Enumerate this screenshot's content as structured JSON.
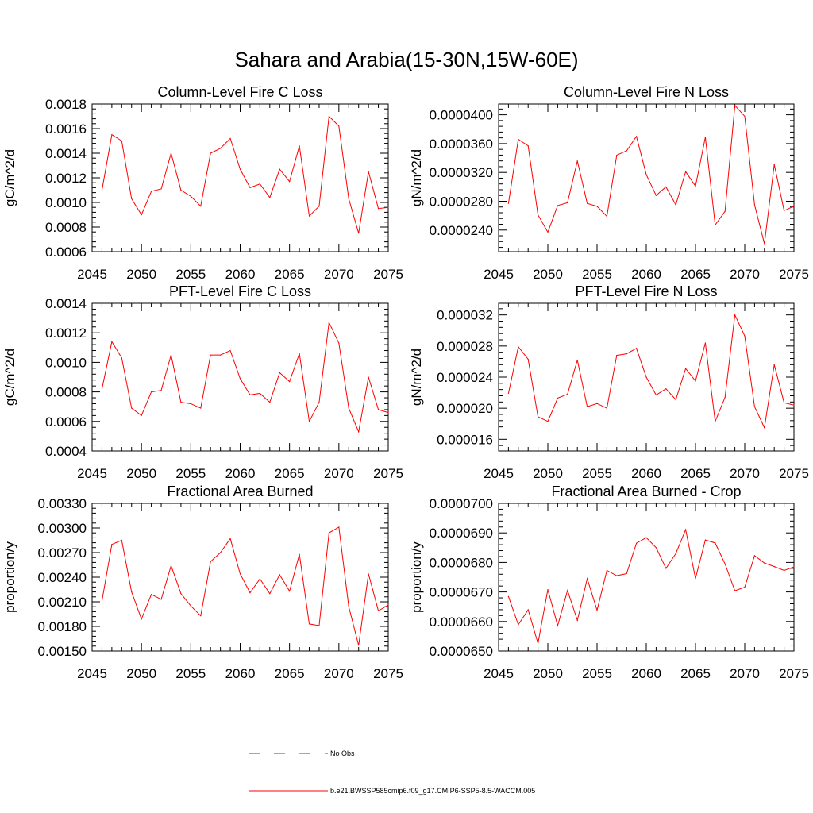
{
  "figure": {
    "title": "Sahara and Arabia(15-30N,15W-60E)"
  },
  "legend": {
    "entries": [
      {
        "label": "No Obs",
        "color": "#3b3bd6",
        "dashed": true
      },
      {
        "label": "b.e21.BWSSP585cmip6.f09_g17.CMIP6-SSP5-8.5-WACCM.005",
        "color": "#ff0000",
        "dashed": false
      }
    ]
  },
  "chart_data": [
    {
      "type": "line",
      "title": "Column-Level Fire C Loss",
      "ylabel": "gC/m^2/d",
      "xlabel": "",
      "xlim": [
        2045,
        2075
      ],
      "ylim": [
        0.0006,
        0.0018
      ],
      "xticks": [
        2045,
        2050,
        2055,
        2060,
        2065,
        2070,
        2075
      ],
      "yticks": [
        0.0006,
        0.0008,
        0.001,
        0.0012,
        0.0014,
        0.0016,
        0.0018
      ],
      "ytick_labels": [
        "0.0006",
        "0.0008",
        "0.0010",
        "0.0012",
        "0.0014",
        "0.0016",
        "0.0018"
      ],
      "x": [
        2046,
        2047,
        2048,
        2049,
        2050,
        2051,
        2052,
        2053,
        2054,
        2055,
        2056,
        2057,
        2058,
        2059,
        2060,
        2061,
        2062,
        2063,
        2064,
        2065,
        2066,
        2067,
        2068,
        2069,
        2070,
        2071,
        2072,
        2073,
        2074,
        2075
      ],
      "series": [
        {
          "color": "#ff0000",
          "values": [
            0.0011,
            0.00155,
            0.0015,
            0.00103,
            0.0009,
            0.00109,
            0.00111,
            0.0014,
            0.0011,
            0.00105,
            0.00097,
            0.0014,
            0.00144,
            0.00152,
            0.00127,
            0.00112,
            0.00115,
            0.00104,
            0.00127,
            0.00117,
            0.00146,
            0.00089,
            0.00097,
            0.0017,
            0.00162,
            0.00103,
            0.00075,
            0.00125,
            0.00095,
            0.00096
          ]
        }
      ]
    },
    {
      "type": "line",
      "title": "Column-Level Fire N Loss",
      "ylabel": "gN/m^2/d",
      "xlabel": "",
      "xlim": [
        2045,
        2075
      ],
      "ylim": [
        2.1e-05,
        4.15e-05
      ],
      "xticks": [
        2045,
        2050,
        2055,
        2060,
        2065,
        2070,
        2075
      ],
      "yticks": [
        2.4e-05,
        2.8e-05,
        3.2e-05,
        3.6e-05,
        4e-05
      ],
      "ytick_labels": [
        "0.0000240",
        "0.0000280",
        "0.0000320",
        "0.0000360",
        "0.0000400"
      ],
      "x": [
        2046,
        2047,
        2048,
        2049,
        2050,
        2051,
        2052,
        2053,
        2054,
        2055,
        2056,
        2057,
        2058,
        2059,
        2060,
        2061,
        2062,
        2063,
        2064,
        2065,
        2066,
        2067,
        2068,
        2069,
        2070,
        2071,
        2072,
        2073,
        2074,
        2075
      ],
      "series": [
        {
          "color": "#ff0000",
          "values": [
            2.77e-05,
            3.66e-05,
            3.57e-05,
            2.61e-05,
            2.37e-05,
            2.74e-05,
            2.78e-05,
            3.36e-05,
            2.77e-05,
            2.73e-05,
            2.59e-05,
            3.44e-05,
            3.5e-05,
            3.7e-05,
            3.17e-05,
            2.88e-05,
            3e-05,
            2.75e-05,
            3.21e-05,
            3.01e-05,
            3.69e-05,
            2.47e-05,
            2.66e-05,
            4.13e-05,
            3.98e-05,
            2.75e-05,
            2.21e-05,
            3.31e-05,
            2.67e-05,
            2.73e-05
          ]
        }
      ]
    },
    {
      "type": "line",
      "title": "PFT-Level Fire C Loss",
      "ylabel": "gC/m^2/d",
      "xlabel": "",
      "xlim": [
        2045,
        2075
      ],
      "ylim": [
        0.0004,
        0.0014
      ],
      "xticks": [
        2045,
        2050,
        2055,
        2060,
        2065,
        2070,
        2075
      ],
      "yticks": [
        0.0004,
        0.0006,
        0.0008,
        0.001,
        0.0012,
        0.0014
      ],
      "ytick_labels": [
        "0.0004",
        "0.0006",
        "0.0008",
        "0.0010",
        "0.0012",
        "0.0014"
      ],
      "x": [
        2046,
        2047,
        2048,
        2049,
        2050,
        2051,
        2052,
        2053,
        2054,
        2055,
        2056,
        2057,
        2058,
        2059,
        2060,
        2061,
        2062,
        2063,
        2064,
        2065,
        2066,
        2067,
        2068,
        2069,
        2070,
        2071,
        2072,
        2073,
        2074,
        2075
      ],
      "series": [
        {
          "color": "#ff0000",
          "values": [
            0.00082,
            0.00114,
            0.00103,
            0.00069,
            0.00064,
            0.0008,
            0.00081,
            0.00105,
            0.00073,
            0.00072,
            0.00069,
            0.00105,
            0.00105,
            0.00108,
            0.00089,
            0.00078,
            0.00079,
            0.00073,
            0.00093,
            0.00087,
            0.00106,
            0.0006,
            0.00073,
            0.00127,
            0.00113,
            0.00069,
            0.00053,
            0.0009,
            0.00068,
            0.00066
          ]
        }
      ]
    },
    {
      "type": "line",
      "title": "PFT-Level Fire N Loss",
      "ylabel": "gN/m^2/d",
      "xlabel": "",
      "xlim": [
        2045,
        2075
      ],
      "ylim": [
        1.45e-05,
        3.35e-05
      ],
      "xticks": [
        2045,
        2050,
        2055,
        2060,
        2065,
        2070,
        2075
      ],
      "yticks": [
        1.6e-05,
        2e-05,
        2.4e-05,
        2.8e-05,
        3.2e-05
      ],
      "ytick_labels": [
        "0.000016",
        "0.000020",
        "0.000024",
        "0.000028",
        "0.000032"
      ],
      "x": [
        2046,
        2047,
        2048,
        2049,
        2050,
        2051,
        2052,
        2053,
        2054,
        2055,
        2056,
        2057,
        2058,
        2059,
        2060,
        2061,
        2062,
        2063,
        2064,
        2065,
        2066,
        2067,
        2068,
        2069,
        2070,
        2071,
        2072,
        2073,
        2074,
        2075
      ],
      "series": [
        {
          "color": "#ff0000",
          "values": [
            2.19e-05,
            2.79e-05,
            2.63e-05,
            1.89e-05,
            1.83e-05,
            2.13e-05,
            2.18e-05,
            2.62e-05,
            2.02e-05,
            2.06e-05,
            2e-05,
            2.68e-05,
            2.7e-05,
            2.77e-05,
            2.4e-05,
            2.17e-05,
            2.25e-05,
            2.11e-05,
            2.51e-05,
            2.35e-05,
            2.84e-05,
            1.83e-05,
            2.14e-05,
            3.2e-05,
            2.93e-05,
            2.02e-05,
            1.75e-05,
            2.56e-05,
            2.07e-05,
            2.04e-05
          ]
        }
      ]
    },
    {
      "type": "line",
      "title": "Fractional Area Burned",
      "ylabel": "proportion/y",
      "xlabel": "",
      "xlim": [
        2045,
        2075
      ],
      "ylim": [
        0.0015,
        0.0033
      ],
      "xticks": [
        2045,
        2050,
        2055,
        2060,
        2065,
        2070,
        2075
      ],
      "yticks": [
        0.0015,
        0.0018,
        0.0021,
        0.0024,
        0.0027,
        0.003,
        0.0033
      ],
      "ytick_labels": [
        "0.00150",
        "0.00180",
        "0.00210",
        "0.00240",
        "0.00270",
        "0.00300",
        "0.00330"
      ],
      "x": [
        2046,
        2047,
        2048,
        2049,
        2050,
        2051,
        2052,
        2053,
        2054,
        2055,
        2056,
        2057,
        2058,
        2059,
        2060,
        2061,
        2062,
        2063,
        2064,
        2065,
        2066,
        2067,
        2068,
        2069,
        2070,
        2071,
        2072,
        2073,
        2074,
        2075
      ],
      "series": [
        {
          "color": "#ff0000",
          "values": [
            0.00211,
            0.0028,
            0.00285,
            0.00222,
            0.00189,
            0.00219,
            0.00213,
            0.00254,
            0.0022,
            0.00205,
            0.00193,
            0.00259,
            0.0027,
            0.00287,
            0.00244,
            0.00221,
            0.00238,
            0.0022,
            0.00243,
            0.00223,
            0.00268,
            0.00183,
            0.00181,
            0.00294,
            0.00301,
            0.00204,
            0.00157,
            0.00244,
            0.00199,
            0.00206
          ]
        }
      ]
    },
    {
      "type": "line",
      "title": "Fractional Area Burned - Crop",
      "ylabel": "proportion/y",
      "xlabel": "",
      "xlim": [
        2045,
        2075
      ],
      "ylim": [
        6.5e-05,
        7e-05
      ],
      "xticks": [
        2045,
        2050,
        2055,
        2060,
        2065,
        2070,
        2075
      ],
      "yticks": [
        6.5e-05,
        6.6e-05,
        6.7e-05,
        6.8e-05,
        6.9e-05,
        7e-05
      ],
      "ytick_labels": [
        "0.0000650",
        "0.0000660",
        "0.0000670",
        "0.0000680",
        "0.0000690",
        "0.0000700"
      ],
      "x": [
        2046,
        2047,
        2048,
        2049,
        2050,
        2051,
        2052,
        2053,
        2054,
        2055,
        2056,
        2057,
        2058,
        2059,
        2060,
        2061,
        2062,
        2063,
        2064,
        2065,
        2066,
        2067,
        2068,
        2069,
        2070,
        2071,
        2072,
        2073,
        2074,
        2075
      ],
      "series": [
        {
          "color": "#ff0000",
          "values": [
            6.685e-05,
            6.589e-05,
            6.64e-05,
            6.526e-05,
            6.708e-05,
            6.586e-05,
            6.705e-05,
            6.604e-05,
            6.745e-05,
            6.638e-05,
            6.773e-05,
            6.755e-05,
            6.762e-05,
            6.865e-05,
            6.884e-05,
            6.85e-05,
            6.78e-05,
            6.83e-05,
            6.911e-05,
            6.746e-05,
            6.876e-05,
            6.866e-05,
            6.795e-05,
            6.704e-05,
            6.716e-05,
            6.823e-05,
            6.798e-05,
            6.786e-05,
            6.773e-05,
            6.785e-05
          ]
        }
      ]
    }
  ]
}
